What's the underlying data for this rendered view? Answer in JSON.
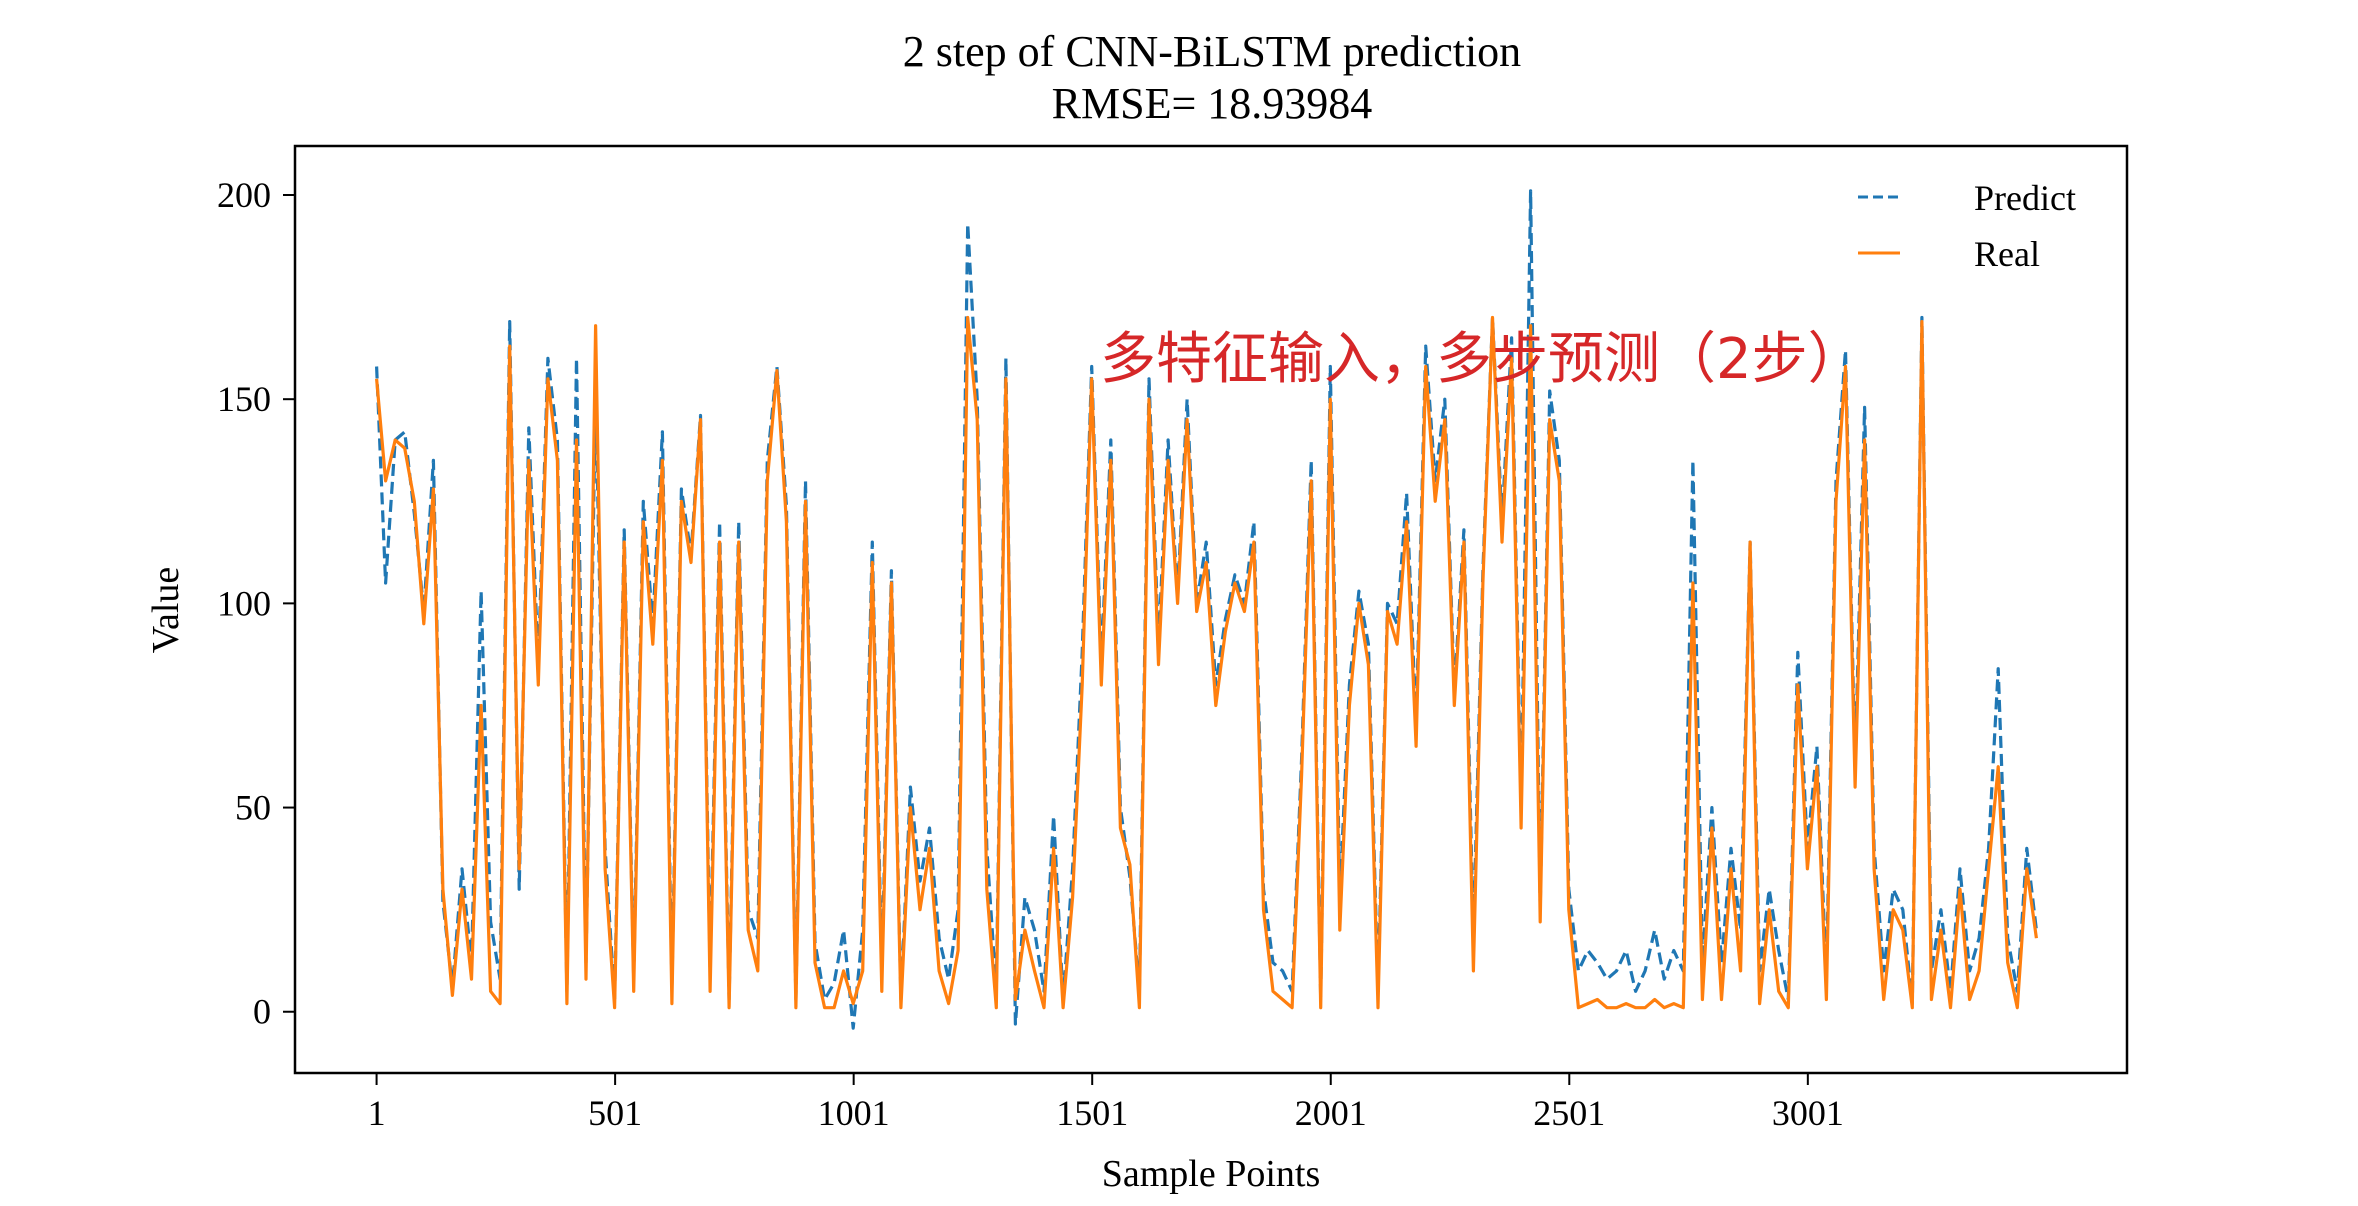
{
  "chart_data": {
    "type": "line",
    "title": "2 step of CNN-BiLSTM prediction",
    "subtitle": "RMSE= 18.93984",
    "xlabel": "Sample Points",
    "ylabel": "Value",
    "xlim": [
      -170,
      3670
    ],
    "ylim": [
      -15,
      212
    ],
    "xticks": [
      1,
      501,
      1001,
      1501,
      2001,
      2501,
      3001
    ],
    "xtick_labels": [
      "1",
      "501",
      "1001",
      "1501",
      "2001",
      "2501",
      "3001"
    ],
    "yticks": [
      0,
      50,
      100,
      150,
      200
    ],
    "ytick_labels": [
      "0",
      "50",
      "100",
      "150",
      "200"
    ],
    "grid": false,
    "legend_position": "top-right",
    "annotation": "多特征输入，多步预测（2步）",
    "series": [
      {
        "name": "Predict",
        "color": "#1f77b4",
        "dash": true,
        "x": [
          1,
          20,
          40,
          60,
          80,
          100,
          120,
          140,
          160,
          180,
          200,
          220,
          240,
          260,
          280,
          300,
          320,
          340,
          360,
          380,
          400,
          420,
          440,
          460,
          480,
          500,
          520,
          540,
          560,
          580,
          600,
          620,
          640,
          660,
          680,
          700,
          720,
          740,
          760,
          780,
          800,
          820,
          840,
          860,
          880,
          900,
          920,
          940,
          960,
          980,
          1000,
          1020,
          1040,
          1060,
          1080,
          1100,
          1120,
          1140,
          1160,
          1180,
          1200,
          1220,
          1240,
          1260,
          1280,
          1300,
          1320,
          1340,
          1360,
          1380,
          1400,
          1420,
          1440,
          1460,
          1480,
          1500,
          1520,
          1540,
          1560,
          1580,
          1600,
          1620,
          1640,
          1660,
          1680,
          1700,
          1720,
          1740,
          1760,
          1780,
          1800,
          1820,
          1840,
          1860,
          1880,
          1900,
          1920,
          1940,
          1960,
          1980,
          2000,
          2020,
          2040,
          2060,
          2080,
          2100,
          2120,
          2140,
          2160,
          2180,
          2200,
          2220,
          2240,
          2260,
          2280,
          2300,
          2320,
          2340,
          2360,
          2380,
          2400,
          2420,
          2440,
          2460,
          2480,
          2500,
          2520,
          2540,
          2560,
          2580,
          2600,
          2620,
          2640,
          2660,
          2680,
          2700,
          2720,
          2740,
          2760,
          2780,
          2800,
          2820,
          2840,
          2860,
          2880,
          2900,
          2920,
          2940,
          2960,
          2980,
          3000,
          3020,
          3040,
          3060,
          3080,
          3100,
          3120,
          3140,
          3160,
          3180,
          3200,
          3220,
          3240,
          3260,
          3280,
          3300,
          3320,
          3340,
          3360,
          3380,
          3400,
          3420,
          3440,
          3460,
          3480
        ],
        "values": [
          158,
          105,
          140,
          142,
          122,
          98,
          135,
          27,
          6,
          35,
          12,
          103,
          22,
          8,
          169,
          30,
          143,
          85,
          160,
          140,
          5,
          160,
          12,
          152,
          40,
          3,
          118,
          8,
          125,
          95,
          142,
          6,
          128,
          112,
          146,
          10,
          120,
          3,
          120,
          25,
          18,
          135,
          158,
          124,
          3,
          130,
          17,
          3,
          7,
          20,
          -4,
          20,
          115,
          10,
          108,
          3,
          55,
          32,
          45,
          18,
          8,
          25,
          193,
          150,
          40,
          5,
          160,
          -3,
          28,
          20,
          5,
          48,
          3,
          35,
          88,
          158,
          85,
          140,
          50,
          33,
          5,
          155,
          90,
          140,
          102,
          150,
          100,
          115,
          80,
          96,
          107,
          100,
          120,
          30,
          12,
          10,
          5,
          62,
          135,
          3,
          158,
          28,
          80,
          103,
          90,
          5,
          100,
          95,
          127,
          70,
          163,
          130,
          150,
          78,
          118,
          18,
          108,
          170,
          120,
          165,
          50,
          201,
          25,
          152,
          135,
          30,
          10,
          15,
          12,
          8,
          10,
          15,
          5,
          10,
          20,
          8,
          15,
          10,
          135,
          12,
          50,
          12,
          40,
          20,
          115,
          10,
          30,
          15,
          3,
          88,
          40,
          65,
          8,
          130,
          162,
          60,
          148,
          40,
          10,
          30,
          25,
          2,
          170,
          10,
          25,
          5,
          35,
          10,
          18,
          40,
          84,
          18,
          5,
          40,
          20
        ]
      },
      {
        "name": "Real",
        "color": "#ff7f0e",
        "dash": false,
        "x": [
          1,
          20,
          40,
          60,
          80,
          100,
          120,
          140,
          160,
          180,
          200,
          220,
          240,
          260,
          280,
          300,
          320,
          340,
          360,
          380,
          400,
          420,
          440,
          460,
          480,
          500,
          520,
          540,
          560,
          580,
          600,
          620,
          640,
          660,
          680,
          700,
          720,
          740,
          760,
          780,
          800,
          820,
          840,
          860,
          880,
          900,
          920,
          940,
          960,
          980,
          1000,
          1020,
          1040,
          1060,
          1080,
          1100,
          1120,
          1140,
          1160,
          1180,
          1200,
          1220,
          1240,
          1260,
          1280,
          1300,
          1320,
          1340,
          1360,
          1380,
          1400,
          1420,
          1440,
          1460,
          1480,
          1500,
          1520,
          1540,
          1560,
          1580,
          1600,
          1620,
          1640,
          1660,
          1680,
          1700,
          1720,
          1740,
          1760,
          1780,
          1800,
          1820,
          1840,
          1860,
          1880,
          1900,
          1920,
          1940,
          1960,
          1980,
          2000,
          2020,
          2040,
          2060,
          2080,
          2100,
          2120,
          2140,
          2160,
          2180,
          2200,
          2220,
          2240,
          2260,
          2280,
          2300,
          2320,
          2340,
          2360,
          2380,
          2400,
          2420,
          2440,
          2460,
          2480,
          2500,
          2520,
          2540,
          2560,
          2580,
          2600,
          2620,
          2640,
          2660,
          2680,
          2700,
          2720,
          2740,
          2760,
          2780,
          2800,
          2820,
          2840,
          2860,
          2880,
          2900,
          2920,
          2940,
          2960,
          2980,
          3000,
          3020,
          3040,
          3060,
          3080,
          3100,
          3120,
          3140,
          3160,
          3180,
          3200,
          3220,
          3240,
          3260,
          3280,
          3300,
          3320,
          3340,
          3360,
          3380,
          3400,
          3420,
          3440,
          3460,
          3480
        ],
        "values": [
          155,
          130,
          140,
          138,
          125,
          95,
          128,
          30,
          4,
          30,
          8,
          75,
          5,
          2,
          163,
          35,
          135,
          80,
          155,
          135,
          2,
          140,
          8,
          168,
          35,
          1,
          115,
          5,
          120,
          90,
          135,
          2,
          125,
          110,
          145,
          5,
          115,
          1,
          115,
          20,
          10,
          130,
          157,
          120,
          1,
          125,
          12,
          1,
          1,
          10,
          2,
          10,
          110,
          5,
          105,
          1,
          50,
          25,
          40,
          10,
          2,
          15,
          170,
          145,
          30,
          1,
          155,
          3,
          20,
          10,
          1,
          40,
          1,
          28,
          80,
          155,
          80,
          135,
          45,
          36,
          1,
          150,
          85,
          135,
          100,
          145,
          98,
          110,
          75,
          93,
          105,
          98,
          115,
          25,
          5,
          3,
          1,
          58,
          130,
          1,
          150,
          20,
          75,
          100,
          85,
          1,
          98,
          90,
          120,
          65,
          158,
          125,
          145,
          75,
          115,
          10,
          105,
          170,
          115,
          160,
          45,
          168,
          22,
          145,
          130,
          25,
          1,
          2,
          3,
          1,
          1,
          2,
          1,
          1,
          3,
          1,
          2,
          1,
          105,
          3,
          45,
          3,
          35,
          10,
          115,
          2,
          25,
          5,
          1,
          80,
          35,
          60,
          3,
          125,
          158,
          55,
          140,
          35,
          3,
          25,
          20,
          1,
          169,
          3,
          20,
          1,
          30,
          3,
          10,
          35,
          60,
          12,
          1,
          35,
          18
        ]
      }
    ]
  }
}
